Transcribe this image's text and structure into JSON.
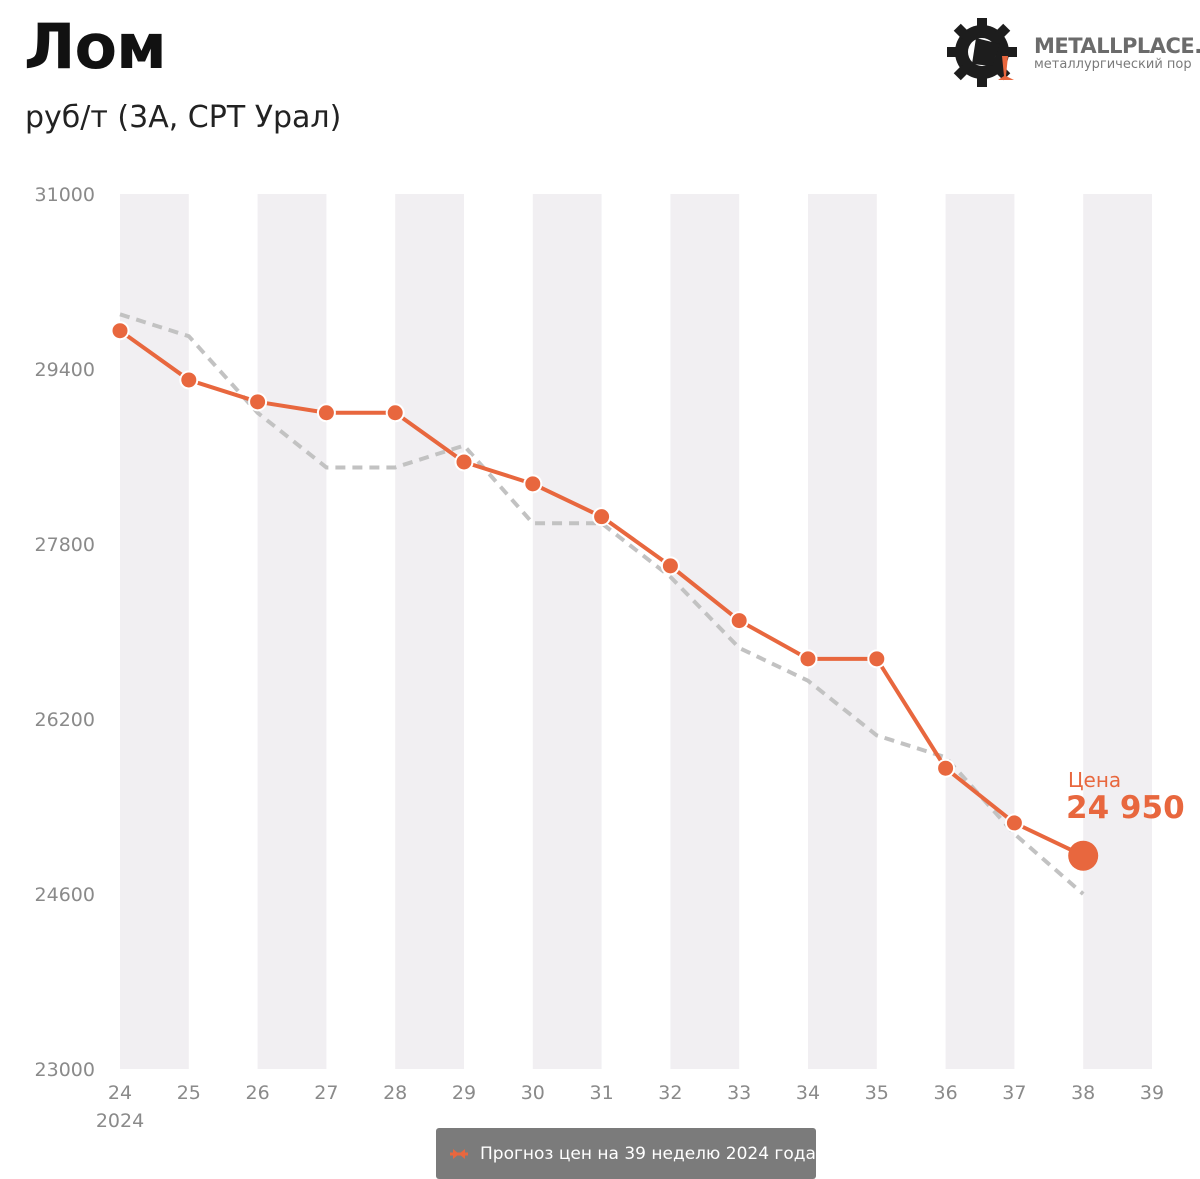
{
  "title": "Лом",
  "subtitle": "руб/т (3А, СРТ Урал)",
  "logo": {
    "name": "METALLPLACE.",
    "tagline": "металлургический пор"
  },
  "price_callout": {
    "label": "Цена",
    "value": "24 950"
  },
  "footer": {
    "label": "Прогноз цен на 39 неделю 2024 года"
  },
  "colors": {
    "actual": "#e8673e",
    "forecast": "#c2c2c2",
    "band": "#f1eff2"
  },
  "chart_data": {
    "type": "line",
    "x": [
      24,
      25,
      26,
      27,
      28,
      29,
      30,
      31,
      32,
      33,
      34,
      35,
      36,
      37,
      38,
      39
    ],
    "x_tick_labels": [
      "24",
      "25",
      "26",
      "27",
      "28",
      "29",
      "30",
      "31",
      "32",
      "33",
      "34",
      "35",
      "36",
      "37",
      "38",
      "39"
    ],
    "x_sublabel": "2024",
    "y_ticks": [
      "31000",
      "29400",
      "27800",
      "26200",
      "24600",
      "23000"
    ],
    "ylim": [
      23000,
      31000
    ],
    "xlim": [
      24,
      39
    ],
    "series": [
      {
        "style": "solid-markers",
        "x": [
          24,
          25,
          26,
          27,
          28,
          29,
          30,
          31,
          32,
          33,
          34,
          35,
          36,
          37,
          38
        ],
        "values": [
          29750,
          29300,
          29100,
          29000,
          29000,
          28550,
          28350,
          28050,
          27600,
          27100,
          26750,
          26750,
          25750,
          25250,
          24950
        ]
      },
      {
        "style": "dashed",
        "x": [
          24,
          25,
          26,
          27,
          28,
          29,
          30,
          31,
          32,
          33,
          34,
          35,
          36,
          37,
          38
        ],
        "values": [
          29900,
          29700,
          29000,
          28500,
          28500,
          28700,
          27990,
          27990,
          27500,
          26850,
          26550,
          26050,
          25850,
          25150,
          24600
        ]
      }
    ],
    "annotation": {
      "label": "Цена",
      "value": "24 950",
      "x": 38,
      "y": 24950
    },
    "grid": "alternating vertical bands",
    "legend": "none"
  }
}
